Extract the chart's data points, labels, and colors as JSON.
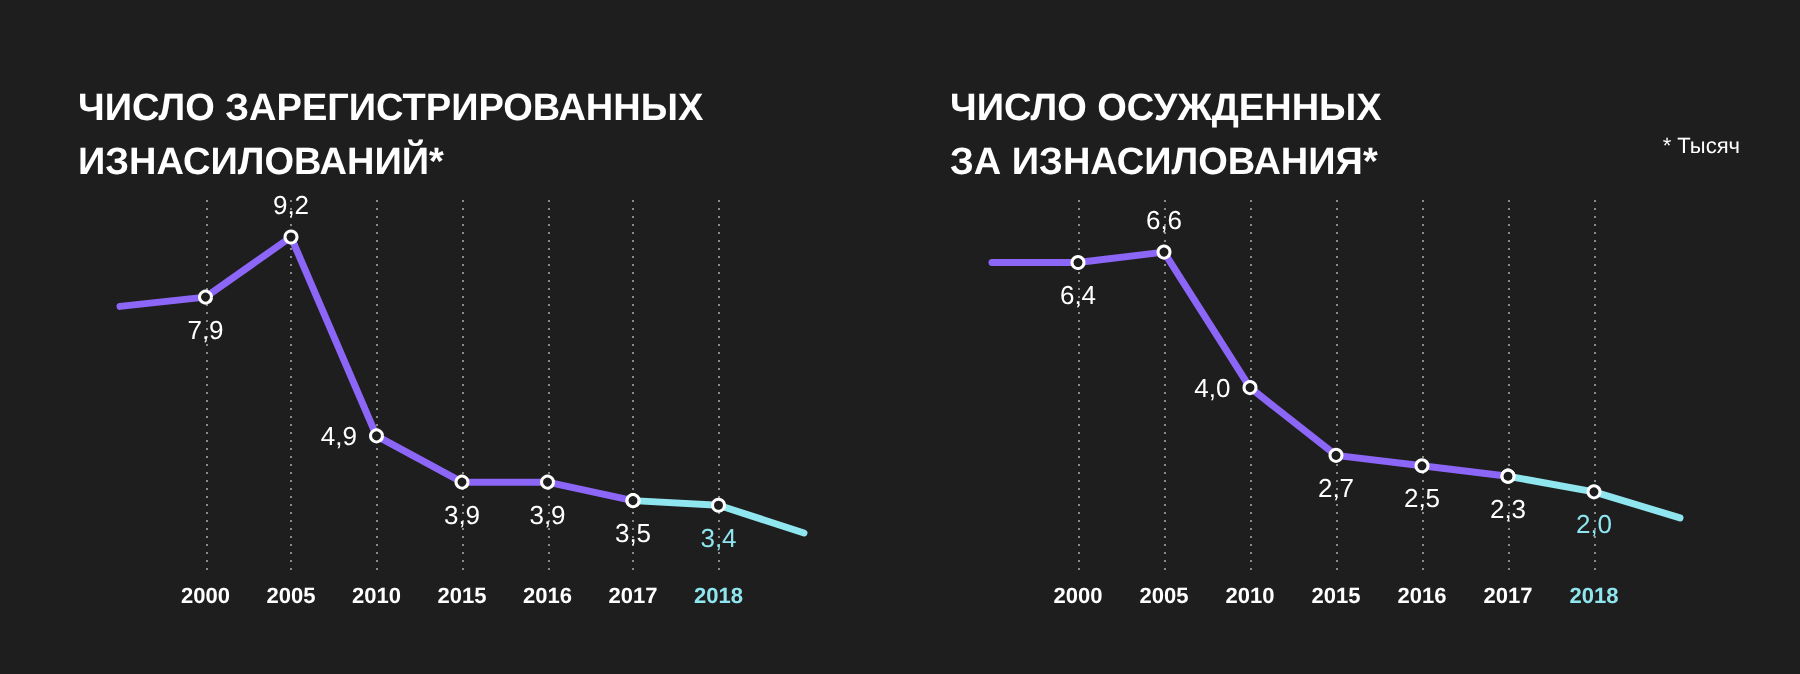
{
  "chart_data": [
    {
      "type": "line",
      "title": "ЧИСЛО ЗАРЕГИСТРИРОВАННЫХ\nИЗНАСИЛОВАНИЙ*",
      "categories": [
        null,
        "2000",
        "2005",
        "2010",
        "2015",
        "2016",
        "2017",
        "2018",
        null
      ],
      "ylim": [
        2,
        10
      ],
      "tick_labels": "x",
      "grid": "x",
      "marker": "circle",
      "line_style": "solid",
      "series": [
        {
          "color": "#8c66f6",
          "values": [
            7.7,
            7.9,
            9.2,
            4.9,
            3.9,
            3.9,
            3.5,
            null,
            null
          ],
          "value_labels": [
            null,
            "7,9",
            "9,2",
            "4,9",
            "3,9",
            "3,9",
            "3,5",
            null,
            null
          ]
        },
        {
          "color": "#8fe6ef",
          "values": [
            null,
            null,
            null,
            null,
            null,
            null,
            3.5,
            3.4,
            2.8
          ],
          "value_labels": [
            null,
            null,
            null,
            null,
            null,
            null,
            null,
            "3,4",
            null
          ]
        }
      ]
    },
    {
      "type": "line",
      "title": "ЧИСЛО ОСУЖДЕННЫХ\nЗА ИЗНАСИЛОВАНИЯ*",
      "categories": [
        null,
        "2000",
        "2005",
        "2010",
        "2015",
        "2016",
        "2017",
        "2018",
        null
      ],
      "ylim": [
        0.5,
        7.6
      ],
      "tick_labels": "x",
      "grid": "x",
      "marker": "circle",
      "line_style": "solid",
      "annotations": [
        "* Тысяч"
      ],
      "series": [
        {
          "color": "#8c66f6",
          "values": [
            6.4,
            6.4,
            6.6,
            4.0,
            2.7,
            2.5,
            2.3,
            null,
            null
          ],
          "value_labels": [
            null,
            "6,4",
            "6,6",
            "4,0",
            "2,7",
            "2,5",
            "2,3",
            null,
            null
          ]
        },
        {
          "color": "#8fe6ef",
          "values": [
            null,
            null,
            null,
            null,
            null,
            null,
            2.3,
            2.0,
            1.5
          ],
          "value_labels": [
            null,
            null,
            null,
            null,
            null,
            null,
            null,
            "2,0",
            null
          ]
        }
      ]
    }
  ]
}
